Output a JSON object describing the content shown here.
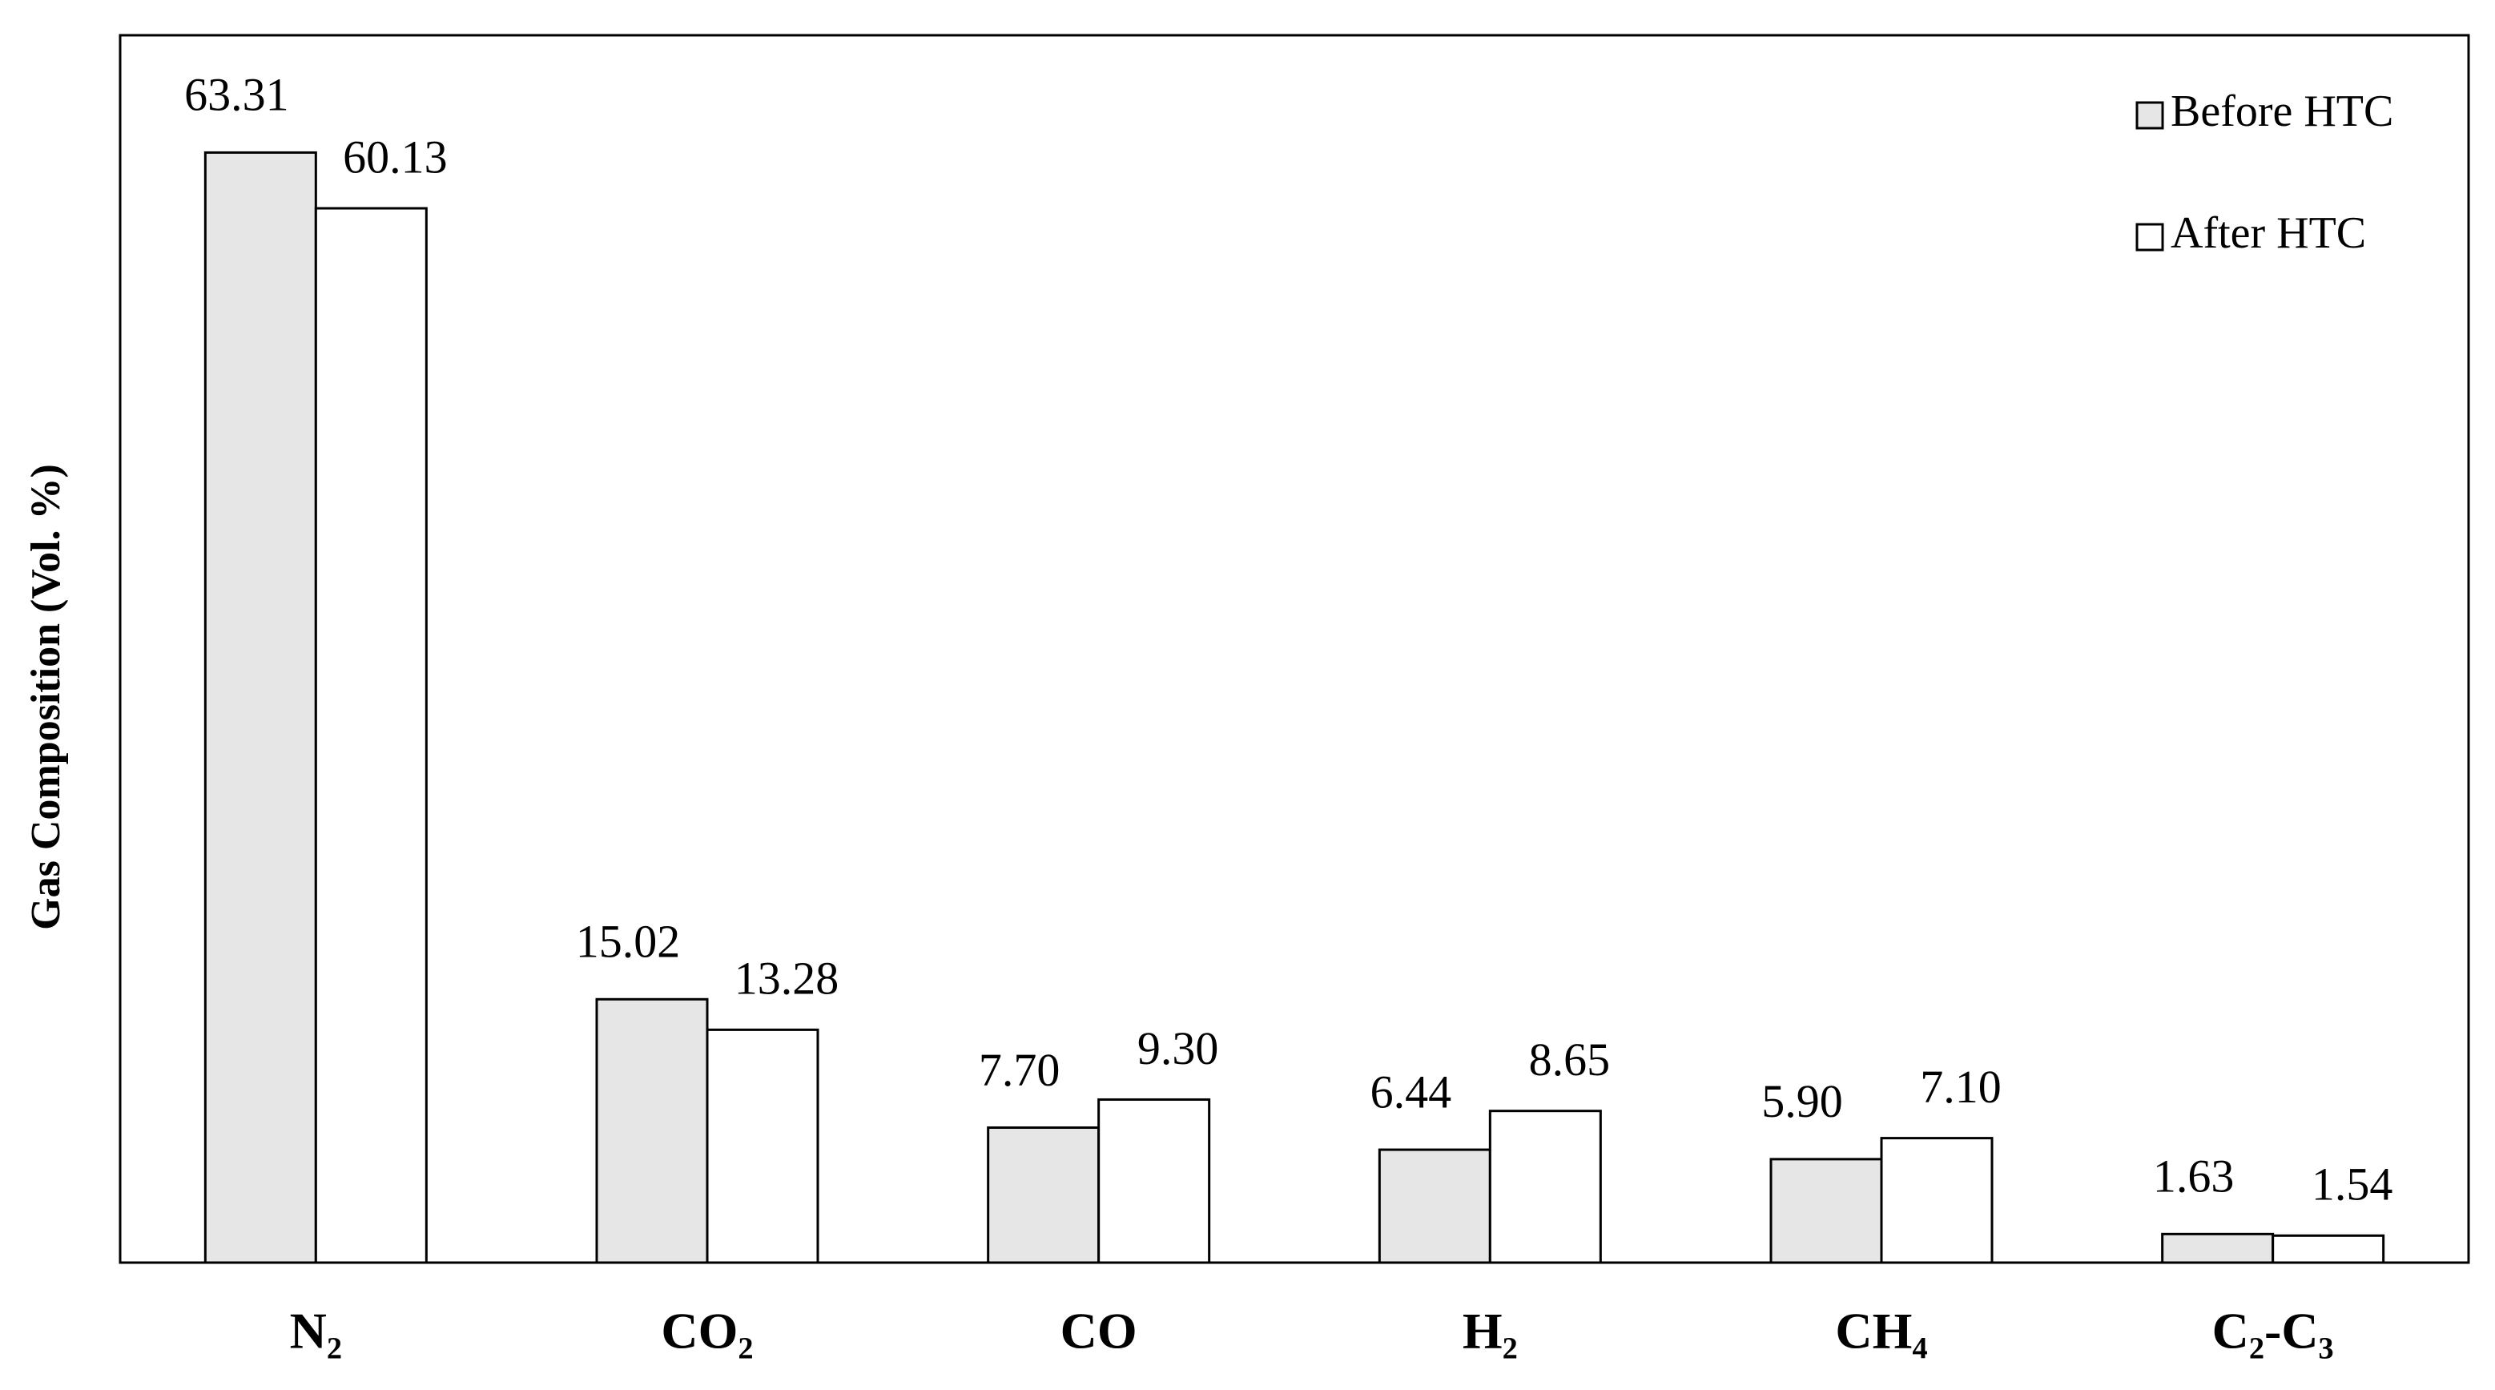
{
  "chart_data": {
    "type": "bar",
    "y_label": "Gas Composition (Vol. %)",
    "categories": [
      "N₂",
      "CO₂",
      "CO",
      "H₂",
      "CH₄",
      "C₂-C₃"
    ],
    "series": [
      {
        "name": "Before HTC",
        "color": "#e6e6e6",
        "values": [
          63.31,
          15.02,
          7.7,
          6.44,
          5.9,
          1.63
        ],
        "value_labels": [
          "63.31",
          "15.02",
          "7.70",
          "6.44",
          "5.90",
          "1.63"
        ]
      },
      {
        "name": "After HTC",
        "color": "#ffffff",
        "values": [
          60.13,
          13.28,
          9.3,
          8.65,
          7.1,
          1.54
        ],
        "value_labels": [
          "60.13",
          "13.28",
          "9.30",
          "8.65",
          "7.10",
          "1.54"
        ]
      }
    ],
    "ylim": [
      0,
      70
    ],
    "legend": "top-right"
  }
}
